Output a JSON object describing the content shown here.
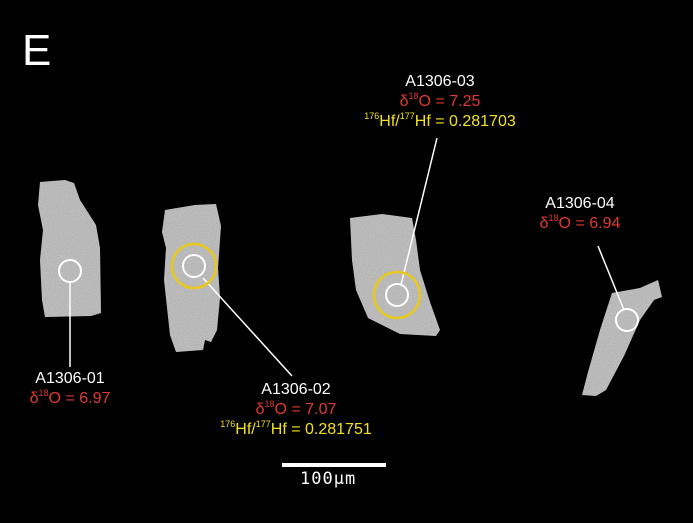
{
  "panel_label": "E",
  "scale_bar": {
    "label": "100μm"
  },
  "grains": [
    {
      "id": "A1306-01",
      "d18o_prefix": "δ",
      "d18o_sup": "18",
      "d18o_text": "O = 6.97"
    },
    {
      "id": "A1306-02",
      "d18o_prefix": "δ",
      "d18o_sup": "18",
      "d18o_text": "O = 7.07",
      "hf_sup1": "176",
      "hf_mid": "Hf/",
      "hf_sup2": "177",
      "hf_text": "Hf = 0.281751"
    },
    {
      "id": "A1306-03",
      "d18o_prefix": "δ",
      "d18o_sup": "18",
      "d18o_text": "O = 7.25",
      "hf_sup1": "176",
      "hf_mid": "Hf/",
      "hf_sup2": "177",
      "hf_text": "Hf = 0.281703"
    },
    {
      "id": "A1306-04",
      "d18o_prefix": "δ",
      "d18o_sup": "18",
      "d18o_text": "O = 6.94"
    }
  ],
  "colors": {
    "background": "#000000",
    "grain": "#bdbdbd",
    "o_spot": "#ffffff",
    "hf_spot": "#e8c81a",
    "o_text": "#e03a2e",
    "hf_text": "#f3e21b"
  }
}
